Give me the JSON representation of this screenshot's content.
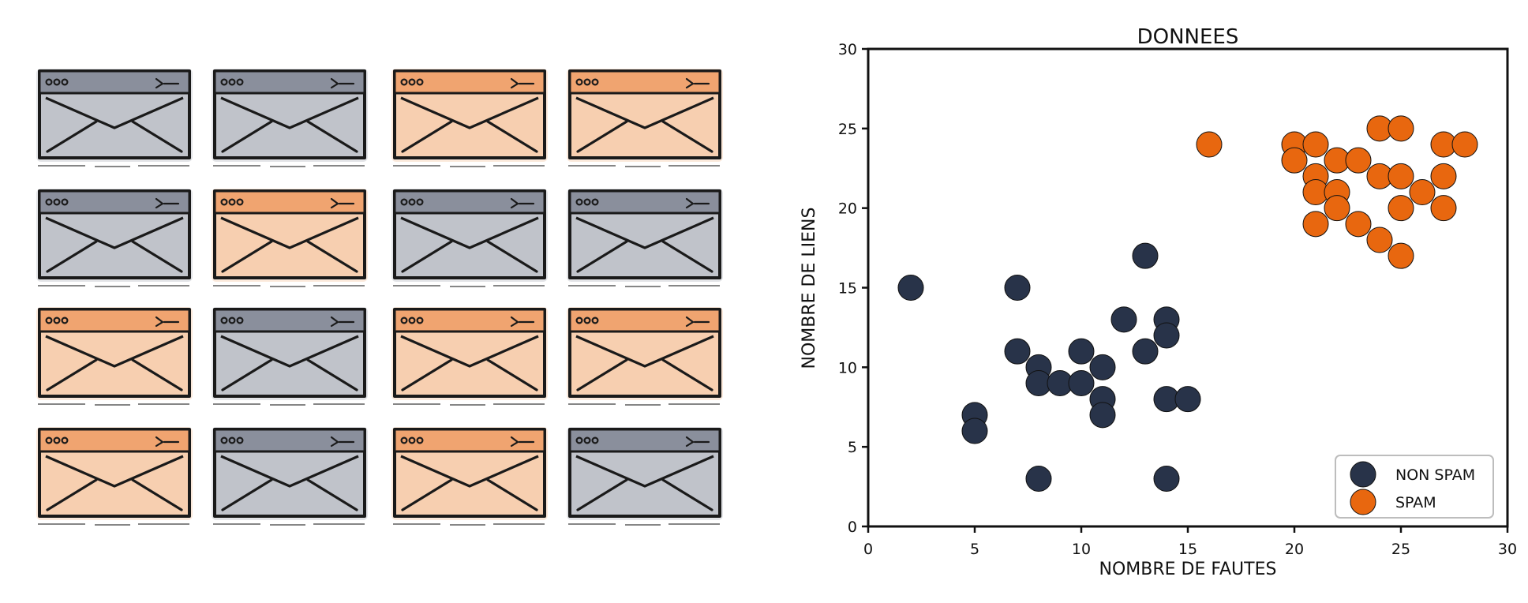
{
  "colors": {
    "gray_body": "#c0c3ca",
    "gray_bar": "#8a8f9c",
    "orange_body": "#f7cfb0",
    "orange_bar": "#f0a470",
    "ink": "#1a1a1a",
    "non_spam": "#283349",
    "spam": "#e8670f"
  },
  "envelopes": {
    "icon": "envelope-window-icon",
    "grid": [
      [
        "gray",
        "gray",
        "orange",
        "orange"
      ],
      [
        "gray",
        "orange",
        "gray",
        "gray"
      ],
      [
        "orange",
        "gray",
        "orange",
        "orange"
      ],
      [
        "orange",
        "gray",
        "orange",
        "gray"
      ]
    ]
  },
  "chart_data": {
    "type": "scatter",
    "title": "DONNEES",
    "xlabel": "NOMBRE DE FAUTES",
    "ylabel": "NOMBRE DE LIENS",
    "xlim": [
      0,
      30
    ],
    "ylim": [
      0,
      30
    ],
    "xticks": [
      0,
      5,
      10,
      15,
      20,
      25,
      30
    ],
    "yticks": [
      0,
      5,
      10,
      15,
      20,
      25,
      30
    ],
    "grid": false,
    "legend_position": "bottom-right",
    "series": [
      {
        "name": "NON SPAM",
        "color": "#283349",
        "points": [
          [
            2,
            15
          ],
          [
            7,
            15
          ],
          [
            7,
            11
          ],
          [
            8,
            10
          ],
          [
            8,
            9
          ],
          [
            9,
            9
          ],
          [
            10,
            11
          ],
          [
            10,
            9
          ],
          [
            11,
            10
          ],
          [
            11,
            8
          ],
          [
            11,
            7
          ],
          [
            12,
            13
          ],
          [
            13,
            17
          ],
          [
            13,
            11
          ],
          [
            14,
            13
          ],
          [
            14,
            12
          ],
          [
            14,
            8
          ],
          [
            15,
            8
          ],
          [
            5,
            7
          ],
          [
            5,
            6
          ],
          [
            8,
            3
          ],
          [
            14,
            3
          ]
        ]
      },
      {
        "name": "SPAM",
        "color": "#e8670f",
        "points": [
          [
            16,
            24
          ],
          [
            20,
            24
          ],
          [
            20,
            23
          ],
          [
            21,
            24
          ],
          [
            21,
            22
          ],
          [
            21,
            21
          ],
          [
            21,
            19
          ],
          [
            22,
            23
          ],
          [
            22,
            21
          ],
          [
            22,
            20
          ],
          [
            23,
            23
          ],
          [
            23,
            19
          ],
          [
            24,
            25
          ],
          [
            24,
            22
          ],
          [
            24,
            18
          ],
          [
            25,
            25
          ],
          [
            25,
            22
          ],
          [
            25,
            20
          ],
          [
            25,
            17
          ],
          [
            26,
            21
          ],
          [
            27,
            24
          ],
          [
            27,
            22
          ],
          [
            27,
            20
          ],
          [
            28,
            24
          ]
        ]
      }
    ]
  }
}
